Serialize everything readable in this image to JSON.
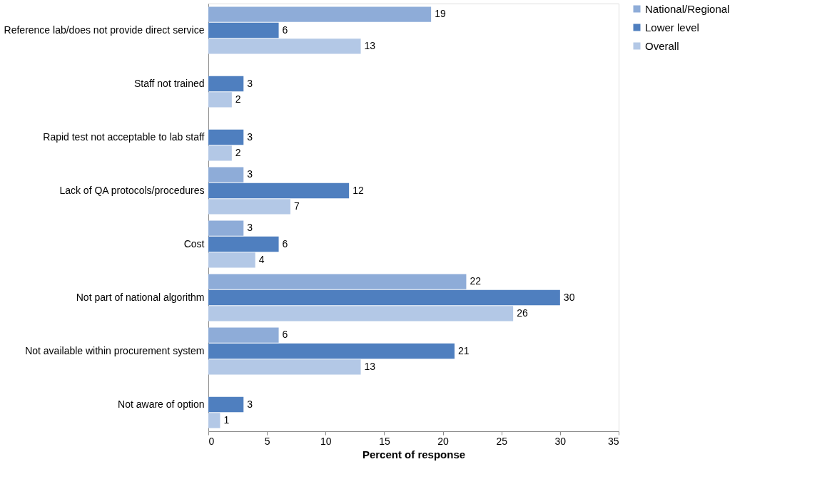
{
  "chart_data": {
    "type": "bar",
    "orientation": "horizontal",
    "xlabel": "Percent of response",
    "categories": [
      "Reference lab/does not provide direct service",
      "Staff not trained",
      "Rapid test not acceptable to lab staff",
      "Lack of QA protocols/procedures",
      "Cost",
      "Not part of national algorithm",
      "Not available within procurement system",
      "Not aware of option"
    ],
    "series": [
      {
        "name": "National/Regional",
        "color": "#8eacd8",
        "values": [
          19,
          null,
          null,
          3,
          3,
          22,
          6,
          null
        ]
      },
      {
        "name": "Lower level",
        "color": "#4f7fbf",
        "values": [
          6,
          3,
          3,
          12,
          6,
          30,
          21,
          3
        ]
      },
      {
        "name": "Overall",
        "color": "#b3c8e6",
        "values": [
          13,
          2,
          2,
          7,
          4,
          26,
          13,
          1
        ]
      }
    ],
    "xlim": [
      0,
      35
    ],
    "xticks": [
      0,
      5,
      10,
      15,
      20,
      25,
      30,
      35
    ],
    "data_labels": true,
    "grid": false,
    "legend": "right"
  }
}
